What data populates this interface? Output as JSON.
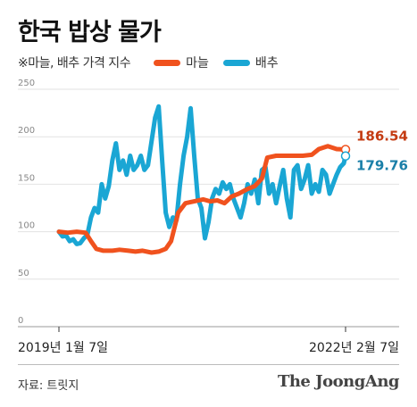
{
  "chart_data": {
    "type": "line",
    "title": "한국 밥상 물가",
    "note": "※마늘, 배추 가격 지수",
    "ylim": [
      0,
      250
    ],
    "yticks": [
      0,
      50,
      100,
      150,
      200,
      250
    ],
    "x_range": [
      "2019-01-07",
      "2022-02-07"
    ],
    "x_labels": [
      "2019년 1월 7일",
      "2022년 2월 7일"
    ],
    "grid": true,
    "legend": "top",
    "series": [
      {
        "name": "마늘",
        "color": "#f0521e",
        "end_label": "186.54",
        "end_value": 186.54,
        "points": [
          [
            "2019-01-07",
            100
          ],
          [
            "2019-02-11",
            99
          ],
          [
            "2019-03-18",
            100
          ],
          [
            "2019-04-22",
            99
          ],
          [
            "2019-05-13",
            90
          ],
          [
            "2019-06-03",
            82
          ],
          [
            "2019-07-01",
            80
          ],
          [
            "2019-08-05",
            80
          ],
          [
            "2019-09-02",
            81
          ],
          [
            "2019-10-07",
            80
          ],
          [
            "2019-11-04",
            79
          ],
          [
            "2019-12-02",
            80
          ],
          [
            "2020-01-06",
            78
          ],
          [
            "2020-02-03",
            79
          ],
          [
            "2020-03-02",
            82
          ],
          [
            "2020-03-23",
            90
          ],
          [
            "2020-04-20",
            120
          ],
          [
            "2020-05-18",
            130
          ],
          [
            "2020-06-22",
            132
          ],
          [
            "2020-07-27",
            134
          ],
          [
            "2020-08-24",
            132
          ],
          [
            "2020-09-21",
            133
          ],
          [
            "2020-10-19",
            130
          ],
          [
            "2020-11-16",
            137
          ],
          [
            "2020-12-14",
            140
          ],
          [
            "2021-01-18",
            145
          ],
          [
            "2021-02-15",
            148
          ],
          [
            "2021-03-15",
            156
          ],
          [
            "2021-04-05",
            178
          ],
          [
            "2021-05-10",
            180
          ],
          [
            "2021-06-14",
            180
          ],
          [
            "2021-07-19",
            180
          ],
          [
            "2021-08-23",
            180
          ],
          [
            "2021-09-27",
            181
          ],
          [
            "2021-10-25",
            187
          ],
          [
            "2021-11-29",
            190
          ],
          [
            "2022-01-03",
            187
          ],
          [
            "2022-02-07",
            186.54
          ]
        ]
      },
      {
        "name": "배추",
        "color": "#1aa6d4",
        "end_label": "179.76",
        "end_value": 179.76,
        "points": [
          [
            "2019-01-07",
            100
          ],
          [
            "2019-01-21",
            95
          ],
          [
            "2019-02-04",
            96
          ],
          [
            "2019-02-18",
            90
          ],
          [
            "2019-03-04",
            92
          ],
          [
            "2019-03-18",
            87
          ],
          [
            "2019-04-01",
            88
          ],
          [
            "2019-04-15",
            93
          ],
          [
            "2019-04-29",
            97
          ],
          [
            "2019-05-13",
            115
          ],
          [
            "2019-05-27",
            125
          ],
          [
            "2019-06-10",
            120
          ],
          [
            "2019-06-24",
            150
          ],
          [
            "2019-07-08",
            135
          ],
          [
            "2019-07-22",
            148
          ],
          [
            "2019-08-05",
            175
          ],
          [
            "2019-08-19",
            193
          ],
          [
            "2019-09-02",
            165
          ],
          [
            "2019-09-16",
            175
          ],
          [
            "2019-09-30",
            160
          ],
          [
            "2019-10-14",
            180
          ],
          [
            "2019-10-28",
            165
          ],
          [
            "2019-11-11",
            170
          ],
          [
            "2019-11-25",
            180
          ],
          [
            "2019-12-09",
            165
          ],
          [
            "2019-12-23",
            170
          ],
          [
            "2020-01-06",
            195
          ],
          [
            "2020-01-20",
            220
          ],
          [
            "2020-02-03",
            232
          ],
          [
            "2020-02-17",
            175
          ],
          [
            "2020-03-02",
            120
          ],
          [
            "2020-03-16",
            105
          ],
          [
            "2020-03-30",
            115
          ],
          [
            "2020-04-13",
            112
          ],
          [
            "2020-04-27",
            150
          ],
          [
            "2020-05-11",
            180
          ],
          [
            "2020-05-25",
            200
          ],
          [
            "2020-06-08",
            230
          ],
          [
            "2020-06-22",
            180
          ],
          [
            "2020-07-06",
            135
          ],
          [
            "2020-07-20",
            125
          ],
          [
            "2020-08-03",
            93
          ],
          [
            "2020-08-17",
            110
          ],
          [
            "2020-08-31",
            135
          ],
          [
            "2020-09-14",
            145
          ],
          [
            "2020-09-28",
            140
          ],
          [
            "2020-10-12",
            152
          ],
          [
            "2020-10-26",
            145
          ],
          [
            "2020-11-09",
            150
          ],
          [
            "2020-11-23",
            135
          ],
          [
            "2020-12-07",
            125
          ],
          [
            "2020-12-21",
            115
          ],
          [
            "2021-01-04",
            130
          ],
          [
            "2021-01-18",
            150
          ],
          [
            "2021-02-01",
            140
          ],
          [
            "2021-02-15",
            155
          ],
          [
            "2021-03-01",
            130
          ],
          [
            "2021-03-15",
            165
          ],
          [
            "2021-03-29",
            168
          ],
          [
            "2021-04-12",
            140
          ],
          [
            "2021-04-26",
            150
          ],
          [
            "2021-05-10",
            130
          ],
          [
            "2021-05-24",
            148
          ],
          [
            "2021-06-07",
            165
          ],
          [
            "2021-06-21",
            135
          ],
          [
            "2021-07-05",
            115
          ],
          [
            "2021-07-19",
            165
          ],
          [
            "2021-08-02",
            170
          ],
          [
            "2021-08-16",
            145
          ],
          [
            "2021-08-30",
            155
          ],
          [
            "2021-09-13",
            170
          ],
          [
            "2021-09-27",
            140
          ],
          [
            "2021-10-11",
            150
          ],
          [
            "2021-10-25",
            142
          ],
          [
            "2021-11-08",
            165
          ],
          [
            "2021-11-22",
            160
          ],
          [
            "2021-12-06",
            140
          ],
          [
            "2021-12-20",
            150
          ],
          [
            "2022-01-03",
            160
          ],
          [
            "2022-01-17",
            168
          ],
          [
            "2022-01-31",
            172
          ],
          [
            "2022-02-07",
            179.76
          ]
        ]
      }
    ]
  },
  "footer": {
    "source": "자료: 트릿지",
    "brand": "The JoongAng"
  }
}
